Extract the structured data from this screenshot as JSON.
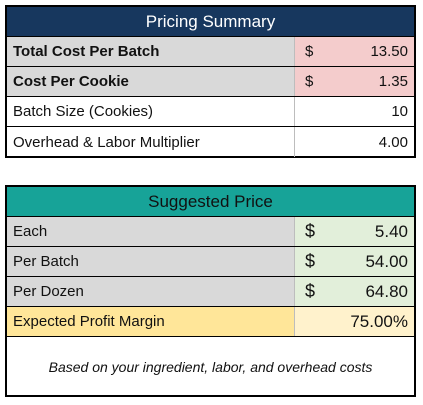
{
  "pricing_summary": {
    "title": "Pricing Summary",
    "rows": [
      {
        "label": "Total Cost Per Batch",
        "currency": "$",
        "value": "13.50"
      },
      {
        "label": "Cost Per Cookie",
        "currency": "$",
        "value": "1.35"
      },
      {
        "label": "Batch Size (Cookies)",
        "value": "10"
      },
      {
        "label": "Overhead & Labor Multiplier",
        "value": "4.00"
      }
    ]
  },
  "suggested_price": {
    "title": "Suggested Price",
    "rows": [
      {
        "label": "Each",
        "currency": "$",
        "value": "5.40"
      },
      {
        "label": "Per Batch",
        "currency": "$",
        "value": "54.00"
      },
      {
        "label": "Per Dozen",
        "currency": "$",
        "value": "64.80"
      }
    ],
    "margin": {
      "label": "Expected Profit Margin",
      "value": "75.00%"
    },
    "note": "Based on your ingredient, labor, and overhead costs"
  },
  "colors": {
    "pricing_header_bg": "#17375e",
    "suggested_header_bg": "#17a398",
    "cost_highlight": "#f4cccc",
    "price_highlight": "#e2efda",
    "margin_label_bg": "#ffe699",
    "margin_value_bg": "#fff2cc"
  }
}
